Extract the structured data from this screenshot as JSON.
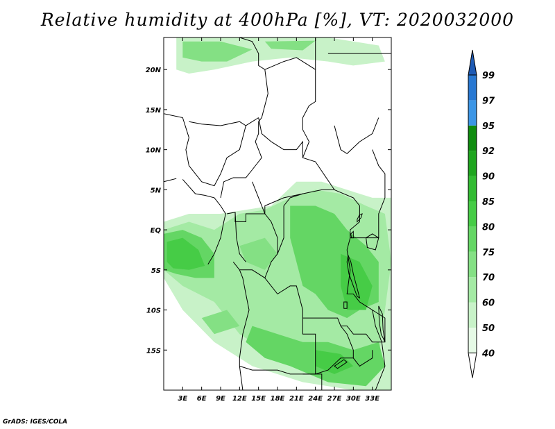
{
  "title": "Relative humidity at 400hPa [%], VT: 2020032000",
  "credit": "GrADS: IGES/COLA",
  "map": {
    "lon_range": [
      0,
      36
    ],
    "lat_range": [
      -20,
      24
    ],
    "lat_ticks": [
      {
        "value": 20,
        "label": "20N"
      },
      {
        "value": 15,
        "label": "15N"
      },
      {
        "value": 10,
        "label": "10N"
      },
      {
        "value": 5,
        "label": "5N"
      },
      {
        "value": 0,
        "label": "EQ"
      },
      {
        "value": -5,
        "label": "5S"
      },
      {
        "value": -10,
        "label": "10S"
      },
      {
        "value": -15,
        "label": "15S"
      }
    ],
    "lon_ticks": [
      {
        "value": 3,
        "label": "3E"
      },
      {
        "value": 6,
        "label": "6E"
      },
      {
        "value": 9,
        "label": "9E"
      },
      {
        "value": 12,
        "label": "12E"
      },
      {
        "value": 15,
        "label": "15E"
      },
      {
        "value": 18,
        "label": "18E"
      },
      {
        "value": 21,
        "label": "21E"
      },
      {
        "value": 24,
        "label": "24E"
      },
      {
        "value": 27,
        "label": "27E"
      },
      {
        "value": 30,
        "label": "30E"
      },
      {
        "value": 33,
        "label": "33E"
      }
    ]
  },
  "colorbar": {
    "levels": [
      "40",
      "50",
      "60",
      "70",
      "75",
      "80",
      "85",
      "90",
      "92",
      "95",
      "97",
      "99"
    ],
    "colors": [
      "#e6fae6",
      "#c8f2c8",
      "#a4eaa4",
      "#84e084",
      "#64d664",
      "#46cc46",
      "#32bb32",
      "#1ea51e",
      "#0f8c0f",
      "#3c96e6",
      "#2878d2",
      "#1e5ab4"
    ]
  },
  "humidity_regions": [
    {
      "level": 1,
      "points": [
        [
          2,
          24
        ],
        [
          15,
          24
        ],
        [
          20,
          24
        ],
        [
          26,
          24
        ],
        [
          34,
          23
        ],
        [
          35,
          21
        ],
        [
          30,
          20.5
        ],
        [
          26,
          21
        ],
        [
          20,
          21.5
        ],
        [
          14,
          21
        ],
        [
          8,
          20
        ],
        [
          4,
          19.5
        ],
        [
          2,
          20
        ]
      ]
    },
    {
      "level": 3,
      "points": [
        [
          3,
          23.5
        ],
        [
          9,
          23.5
        ],
        [
          14,
          22.5
        ],
        [
          10,
          21
        ],
        [
          6,
          21
        ],
        [
          3,
          21.5
        ]
      ]
    },
    {
      "level": 3,
      "points": [
        [
          16,
          23.5
        ],
        [
          24,
          23.6
        ],
        [
          22,
          22.4
        ],
        [
          17,
          22.6
        ]
      ]
    },
    {
      "level": 1,
      "points": [
        [
          0,
          1
        ],
        [
          4,
          2
        ],
        [
          9,
          2
        ],
        [
          13,
          2.5
        ],
        [
          17,
          3
        ],
        [
          21,
          6
        ],
        [
          25,
          6
        ],
        [
          29,
          5
        ],
        [
          33,
          4
        ],
        [
          36,
          4
        ],
        [
          36,
          -20
        ],
        [
          30,
          -20
        ],
        [
          22,
          -19
        ],
        [
          14,
          -17
        ],
        [
          8,
          -14
        ],
        [
          3,
          -10
        ],
        [
          0,
          -6
        ]
      ]
    },
    {
      "level": 2,
      "points": [
        [
          0,
          0
        ],
        [
          4,
          1
        ],
        [
          8,
          0
        ],
        [
          12,
          2
        ],
        [
          16,
          2.5
        ],
        [
          20,
          4
        ],
        [
          24,
          5
        ],
        [
          28,
          4.5
        ],
        [
          32,
          3
        ],
        [
          35,
          2
        ],
        [
          36,
          -4
        ],
        [
          35,
          -10
        ],
        [
          34,
          -16
        ],
        [
          30,
          -18
        ],
        [
          24,
          -17.5
        ],
        [
          18,
          -16
        ],
        [
          12,
          -13
        ],
        [
          8,
          -9
        ],
        [
          3,
          -7
        ],
        [
          0,
          -5
        ]
      ]
    },
    {
      "level": 4,
      "points": [
        [
          0,
          -0.5
        ],
        [
          3,
          0
        ],
        [
          6,
          -1
        ],
        [
          8,
          -3
        ],
        [
          8,
          -6
        ],
        [
          5,
          -6
        ],
        [
          2,
          -5.5
        ],
        [
          0,
          -5
        ]
      ]
    },
    {
      "level": 5,
      "points": [
        [
          0.5,
          -1.5
        ],
        [
          3,
          -1
        ],
        [
          5.5,
          -2.5
        ],
        [
          6.5,
          -4.5
        ],
        [
          4,
          -5
        ],
        [
          1.5,
          -4.8
        ],
        [
          0.5,
          -4
        ]
      ]
    },
    {
      "level": 4,
      "points": [
        [
          20,
          3
        ],
        [
          24,
          3
        ],
        [
          27,
          2
        ],
        [
          29,
          0
        ],
        [
          32,
          -2
        ],
        [
          34,
          -4
        ],
        [
          34,
          -9
        ],
        [
          31,
          -10
        ],
        [
          29,
          -11
        ],
        [
          26,
          -10
        ],
        [
          24,
          -8
        ],
        [
          22,
          -7
        ],
        [
          21,
          -4
        ],
        [
          20,
          -1
        ]
      ]
    },
    {
      "level": 5,
      "points": [
        [
          28,
          -3
        ],
        [
          31,
          -4
        ],
        [
          33,
          -7
        ],
        [
          32,
          -10
        ],
        [
          29,
          -10
        ],
        [
          28,
          -7
        ]
      ]
    },
    {
      "level": 4,
      "points": [
        [
          14,
          -12
        ],
        [
          18,
          -13
        ],
        [
          22,
          -14
        ],
        [
          26,
          -14
        ],
        [
          30,
          -15
        ],
        [
          34,
          -14
        ],
        [
          35,
          -17
        ],
        [
          32,
          -19.5
        ],
        [
          26,
          -19
        ],
        [
          20,
          -17
        ],
        [
          16,
          -16
        ],
        [
          13,
          -14
        ]
      ]
    },
    {
      "level": 5,
      "points": [
        [
          24,
          -15
        ],
        [
          28,
          -15.5
        ],
        [
          30,
          -17
        ],
        [
          27,
          -18
        ],
        [
          24,
          -17
        ]
      ]
    },
    {
      "level": 3,
      "points": [
        [
          12,
          -2
        ],
        [
          16,
          -1
        ],
        [
          18,
          -3
        ],
        [
          16,
          -5
        ],
        [
          13,
          -4
        ]
      ]
    },
    {
      "level": 3,
      "points": [
        [
          6,
          -11
        ],
        [
          10,
          -10
        ],
        [
          12,
          -12
        ],
        [
          8,
          -13
        ]
      ]
    }
  ],
  "borders": [
    [
      [
        0,
        14.5
      ],
      [
        3,
        14
      ],
      [
        4,
        11.5
      ],
      [
        3.5,
        10
      ],
      [
        4,
        8
      ],
      [
        5,
        7
      ],
      [
        6,
        6
      ],
      [
        8,
        5.5
      ],
      [
        9,
        7
      ],
      [
        10,
        9
      ],
      [
        12,
        10
      ],
      [
        13,
        13
      ],
      [
        14,
        13.5
      ],
      [
        15,
        14
      ]
    ],
    [
      [
        4,
        13.5
      ],
      [
        6,
        13.2
      ],
      [
        9,
        13
      ],
      [
        12,
        13.5
      ],
      [
        13,
        13
      ]
    ],
    [
      [
        12,
        24
      ],
      [
        14,
        23.5
      ],
      [
        15,
        22
      ],
      [
        15,
        20.5
      ],
      [
        16,
        20
      ],
      [
        16.5,
        17
      ],
      [
        15.5,
        14
      ],
      [
        15,
        13.5
      ],
      [
        15,
        12
      ],
      [
        14.5,
        11
      ],
      [
        15,
        10
      ],
      [
        15.5,
        9
      ],
      [
        14,
        7.5
      ],
      [
        13,
        6.5
      ],
      [
        11,
        6.5
      ],
      [
        9.5,
        6
      ],
      [
        9,
        4
      ]
    ],
    [
      [
        16,
        20
      ],
      [
        19,
        21
      ],
      [
        21,
        21.5
      ],
      [
        24,
        20
      ],
      [
        24,
        16
      ],
      [
        23,
        15.5
      ],
      [
        22,
        14
      ],
      [
        22,
        12.5
      ],
      [
        23,
        11
      ],
      [
        22,
        9
      ],
      [
        24,
        8.5
      ],
      [
        27,
        5
      ],
      [
        25,
        5
      ],
      [
        22,
        4.5
      ],
      [
        19,
        4
      ],
      [
        16,
        3
      ],
      [
        16,
        2
      ],
      [
        15,
        4
      ],
      [
        14,
        6
      ]
    ],
    [
      [
        15,
        14
      ],
      [
        15.5,
        12
      ],
      [
        17,
        11
      ],
      [
        19,
        10
      ],
      [
        21,
        10
      ],
      [
        22,
        11
      ],
      [
        22,
        9
      ]
    ],
    [
      [
        10,
        2
      ],
      [
        11.3,
        2.2
      ],
      [
        11.3,
        1
      ],
      [
        13,
        1
      ],
      [
        13,
        2
      ],
      [
        16,
        2
      ],
      [
        17,
        1
      ],
      [
        18,
        -1
      ],
      [
        18,
        -3
      ],
      [
        17,
        -4
      ],
      [
        16,
        -6
      ],
      [
        14,
        -5
      ],
      [
        12,
        -5
      ],
      [
        11,
        -4
      ]
    ],
    [
      [
        11.3,
        2.2
      ],
      [
        11.5,
        -1
      ],
      [
        12,
        -3
      ],
      [
        13,
        -4
      ]
    ],
    [
      [
        18,
        -3
      ],
      [
        19,
        -1
      ],
      [
        19,
        3
      ],
      [
        20,
        4
      ],
      [
        22,
        4.5
      ]
    ],
    [
      [
        27,
        5
      ],
      [
        30,
        4
      ],
      [
        31,
        3
      ],
      [
        31,
        1
      ],
      [
        29.5,
        0
      ],
      [
        29.5,
        -1
      ],
      [
        29,
        -2.5
      ],
      [
        29.5,
        -5
      ],
      [
        29,
        -8
      ],
      [
        30,
        -8
      ],
      [
        31,
        -9
      ],
      [
        32,
        -9.5
      ],
      [
        33,
        -10
      ],
      [
        35,
        -11
      ],
      [
        35,
        -14
      ],
      [
        33,
        -14
      ],
      [
        32,
        -13
      ],
      [
        30,
        -13
      ],
      [
        29,
        -12
      ],
      [
        28,
        -12
      ],
      [
        27.5,
        -11
      ],
      [
        26,
        -11
      ],
      [
        24,
        -11
      ],
      [
        23,
        -11
      ],
      [
        22,
        -11
      ],
      [
        22,
        -13
      ],
      [
        24,
        -13
      ],
      [
        24,
        -18
      ],
      [
        22,
        -18
      ],
      [
        20,
        -18
      ],
      [
        18,
        -17.5
      ],
      [
        14,
        -17.5
      ],
      [
        12,
        -17
      ]
    ],
    [
      [
        16,
        -6
      ],
      [
        17,
        -7
      ],
      [
        18,
        -8
      ],
      [
        20,
        -7
      ],
      [
        21,
        -7
      ],
      [
        22,
        -10
      ],
      [
        22,
        -11
      ]
    ],
    [
      [
        12,
        -5
      ],
      [
        12.5,
        -6
      ],
      [
        13,
        -8
      ],
      [
        13.5,
        -10
      ],
      [
        12.5,
        -13
      ],
      [
        12,
        -16
      ],
      [
        12,
        -17
      ],
      [
        12.5,
        -20
      ]
    ],
    [
      [
        22,
        -18
      ],
      [
        25,
        -18
      ],
      [
        25,
        -20
      ]
    ],
    [
      [
        24,
        -18
      ],
      [
        26,
        -17.5
      ],
      [
        28,
        -16
      ],
      [
        30,
        -16
      ],
      [
        31,
        -17
      ],
      [
        33,
        -16
      ],
      [
        33,
        -15
      ]
    ],
    [
      [
        28,
        -12
      ],
      [
        29,
        -13
      ],
      [
        30,
        -15
      ],
      [
        30,
        -16
      ]
    ],
    [
      [
        33,
        -10
      ],
      [
        33.5,
        -12
      ],
      [
        34.5,
        -14
      ],
      [
        35,
        -17
      ],
      [
        33.5,
        -20
      ]
    ],
    [
      [
        29.5,
        -1
      ],
      [
        30.5,
        -1
      ],
      [
        32,
        -1
      ],
      [
        34,
        -1
      ],
      [
        34,
        2
      ],
      [
        35,
        4
      ],
      [
        35,
        7
      ],
      [
        34,
        8
      ],
      [
        33,
        10
      ]
    ],
    [
      [
        24,
        20
      ],
      [
        24,
        24
      ]
    ],
    [
      [
        26,
        22
      ],
      [
        36,
        22
      ]
    ],
    [
      [
        27,
        13
      ],
      [
        28,
        10
      ],
      [
        29,
        9.5
      ],
      [
        31,
        11
      ],
      [
        33,
        12
      ],
      [
        34,
        14
      ]
    ],
    [
      [
        0,
        6
      ],
      [
        1,
        6.2
      ],
      [
        2,
        6.4
      ]
    ],
    [
      [
        7,
        -4.3
      ],
      [
        8,
        -3
      ],
      [
        8.5,
        -2
      ],
      [
        9,
        -1
      ],
      [
        9.5,
        1
      ],
      [
        9.8,
        2
      ],
      [
        9,
        3
      ],
      [
        8,
        4
      ],
      [
        6.5,
        4.3
      ],
      [
        5,
        4.5
      ],
      [
        3,
        6.3
      ]
    ]
  ],
  "lakes": [
    [
      [
        32,
        -1
      ],
      [
        33,
        -0.5
      ],
      [
        34,
        -1
      ],
      [
        33.5,
        -2.5
      ],
      [
        32.2,
        -2.2
      ]
    ],
    [
      [
        29.2,
        -3.2
      ],
      [
        29.6,
        -4
      ],
      [
        30,
        -5.5
      ],
      [
        30.5,
        -7
      ],
      [
        31,
        -8.5
      ],
      [
        30.6,
        -8.3
      ],
      [
        30,
        -7
      ],
      [
        29.3,
        -5.5
      ],
      [
        29,
        -4
      ]
    ],
    [
      [
        34,
        -9.5
      ],
      [
        34.6,
        -10.5
      ],
      [
        34.7,
        -12.5
      ],
      [
        35,
        -14
      ],
      [
        34.4,
        -13
      ],
      [
        34.1,
        -11.5
      ]
    ],
    [
      [
        30.6,
        1
      ],
      [
        31.2,
        1.5
      ],
      [
        31.4,
        2
      ],
      [
        31,
        1.9
      ],
      [
        30.6,
        1.3
      ]
    ],
    [
      [
        29.6,
        -0.5
      ],
      [
        30,
        -0.2
      ],
      [
        30,
        -1
      ],
      [
        29.7,
        -1
      ]
    ],
    [
      [
        28.5,
        -9
      ],
      [
        29,
        -9
      ],
      [
        29,
        -9.8
      ],
      [
        28.5,
        -9.8
      ]
    ],
    [
      [
        27,
        -17
      ],
      [
        28.5,
        -16.2
      ],
      [
        29,
        -16.5
      ],
      [
        27.5,
        -17.3
      ]
    ]
  ]
}
